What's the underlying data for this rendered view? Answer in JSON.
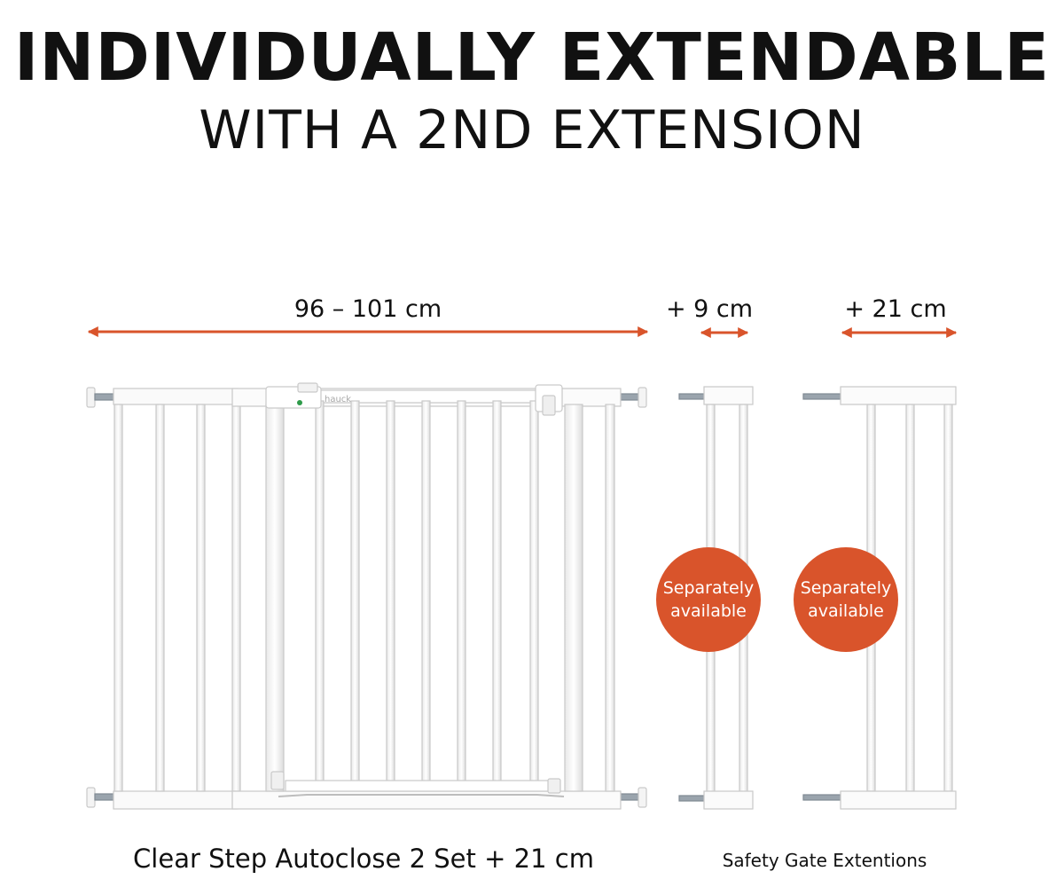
{
  "headline": {
    "title": "INDIVIDUALLY EXTENDABLE",
    "subtitle": "WITH A 2ND EXTENSION"
  },
  "dimensions": {
    "main_gate": "96 – 101 cm",
    "extension_small": "+ 9 cm",
    "extension_large": "+ 21 cm"
  },
  "badges": {
    "small": "Separately available",
    "large": "Separately available"
  },
  "captions": {
    "main": "Clear Step Autoclose 2 Set + 21 cm",
    "extensions": "Safety Gate Extentions"
  },
  "brand_mark": "hauck",
  "colors": {
    "accent": "#d9542b",
    "gate": "#ffffff",
    "gate_outline": "#c9c9c9",
    "text": "#111111"
  },
  "icons": {
    "arrow": "double-headed-arrow-icon",
    "indicator": "green-indicator-icon"
  }
}
